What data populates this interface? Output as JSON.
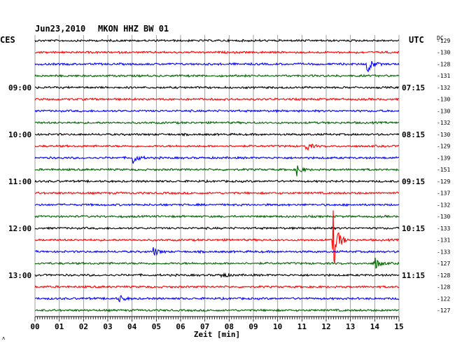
{
  "header": {
    "date": "Jun23,2010",
    "station": "MKON HHZ BW 01",
    "left_tz": "CES",
    "right_tz": "UTC",
    "dc_label": "DC"
  },
  "chart_data": {
    "type": "line",
    "title": "Jun23,2010   MKON HHZ BW 01",
    "xlabel": "Zeit [min]",
    "xlim": [
      0,
      15
    ],
    "x_ticks": [
      "00",
      "01",
      "02",
      "03",
      "04",
      "05",
      "06",
      "07",
      "08",
      "09",
      "10",
      "11",
      "12",
      "13",
      "14",
      "15"
    ],
    "trace_colors": [
      "#000000",
      "#ff0000",
      "#0000ff",
      "#006400"
    ],
    "left_time_labels": [
      {
        "trace": 4,
        "label": "09:00"
      },
      {
        "trace": 8,
        "label": "10:00"
      },
      {
        "trace": 12,
        "label": "11:00"
      },
      {
        "trace": 16,
        "label": "12:00"
      },
      {
        "trace": 20,
        "label": "13:00"
      }
    ],
    "right_time_labels": [
      {
        "trace": 4,
        "label": "07:15"
      },
      {
        "trace": 8,
        "label": "08:15"
      },
      {
        "trace": 12,
        "label": "09:15"
      },
      {
        "trace": 16,
        "label": "10:15"
      },
      {
        "trace": 20,
        "label": "11:15"
      }
    ],
    "dc_offsets": [
      "-129",
      "-130",
      "-128",
      "-131",
      "-132",
      "-130",
      "-130",
      "-132",
      "-130",
      "-129",
      "-139",
      "-151",
      "-129",
      "-137",
      "-132",
      "-130",
      "-133",
      "-131",
      "-133",
      "-127",
      "-128",
      "-128",
      "-122",
      "-127"
    ],
    "events": [
      {
        "trace": 2,
        "minute": 13.7,
        "amplitude": 2.2
      },
      {
        "trace": 9,
        "minute": 11.2,
        "amplitude": 1.0
      },
      {
        "trace": 10,
        "minute": 4.0,
        "amplitude": 1.8
      },
      {
        "trace": 11,
        "minute": 10.8,
        "amplitude": 1.4
      },
      {
        "trace": 17,
        "minute": 12.3,
        "amplitude": 7.0
      },
      {
        "trace": 18,
        "minute": 4.9,
        "amplitude": 1.0
      },
      {
        "trace": 19,
        "minute": 14.0,
        "amplitude": 1.6
      },
      {
        "trace": 20,
        "minute": 7.7,
        "amplitude": 0.8
      },
      {
        "trace": 22,
        "minute": 3.5,
        "amplitude": 0.8
      }
    ],
    "grid": true,
    "grid_vertical_every_minutes": 1
  }
}
